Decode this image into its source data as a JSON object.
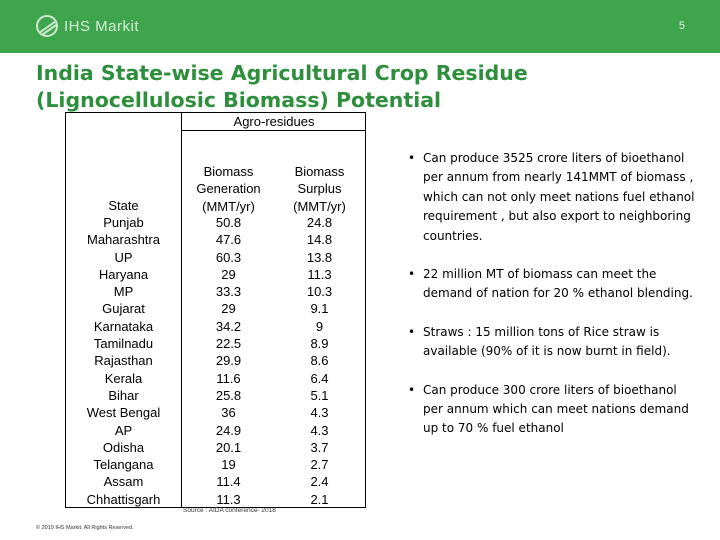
{
  "header": {
    "logo_text": "IHS Markit",
    "page_number": "5",
    "colors": {
      "bar": "#3fa54d",
      "title": "#2d8f3c"
    }
  },
  "title": {
    "line1": "India State-wise Agricultural Crop Residue",
    "line2": "(Lignocellulosic Biomass) Potential"
  },
  "table": {
    "group_header": "Agro-residues",
    "col_state": "State",
    "col_generation": [
      "Biomass",
      "Generation",
      "(MMT/yr)"
    ],
    "col_surplus": [
      "Biomass",
      "Surplus",
      "(MMT/yr)"
    ],
    "rows": [
      {
        "state": "Punjab",
        "generation": "50.8",
        "surplus": "24.8"
      },
      {
        "state": "Maharashtra",
        "generation": "47.6",
        "surplus": "14.8"
      },
      {
        "state": "UP",
        "generation": "60.3",
        "surplus": "13.8"
      },
      {
        "state": "Haryana",
        "generation": "29",
        "surplus": "11.3"
      },
      {
        "state": "MP",
        "generation": "33.3",
        "surplus": "10.3"
      },
      {
        "state": "Gujarat",
        "generation": "29",
        "surplus": "9.1"
      },
      {
        "state": "Karnataka",
        "generation": "34.2",
        "surplus": "9"
      },
      {
        "state": "Tamilnadu",
        "generation": "22.5",
        "surplus": "8.9"
      },
      {
        "state": "Rajasthan",
        "generation": "29.9",
        "surplus": "8.6"
      },
      {
        "state": "Kerala",
        "generation": "11.6",
        "surplus": "6.4"
      },
      {
        "state": "Bihar",
        "generation": "25.8",
        "surplus": "5.1"
      },
      {
        "state": "West Bengal",
        "generation": "36",
        "surplus": "4.3"
      },
      {
        "state": "AP",
        "generation": "24.9",
        "surplus": "4.3"
      },
      {
        "state": "Odisha",
        "generation": "20.1",
        "surplus": "3.7"
      },
      {
        "state": "Telangana",
        "generation": "19",
        "surplus": "2.7"
      },
      {
        "state": "Assam",
        "generation": "11.4",
        "surplus": "2.4"
      },
      {
        "state": "Chhattisgarh",
        "generation": "11.3",
        "surplus": "2.1"
      }
    ],
    "source": "Source : AIDA conference- 2018"
  },
  "bullets": [
    "Can produce 3525 crore liters of bioethanol per annum from nearly 141MMT of biomass , which can not only meet nations fuel ethanol requirement , but also export to neighboring countries.",
    "22 million MT of biomass can meet the demand of nation for 20 % ethanol blending.",
    "Straws : 15 million tons of Rice straw is available (90% of it is now burnt in field).",
    "Can produce 300 crore liters of bioethanol per annum which can meet nations demand up to 70 % fuel ethanol"
  ],
  "footer": "© 2019 IHS Markit. All Rights Reserved."
}
